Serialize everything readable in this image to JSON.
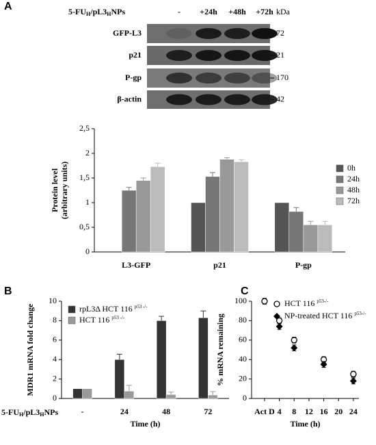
{
  "blot": {
    "treatment_label": [
      "5-FU",
      "H",
      "/pL3",
      "H",
      "NPs"
    ],
    "lanes": [
      "-",
      "+24h",
      "+48h",
      "+72h"
    ],
    "unit": "kDa",
    "rows": [
      {
        "name": "GFP-L3",
        "kda": "72"
      },
      {
        "name": "p21",
        "kda": "21"
      },
      {
        "name": "P-gp",
        "kda": "170"
      },
      {
        "name": "β-actin",
        "kda": "42"
      }
    ]
  },
  "chart_data": [
    {
      "type": "bar",
      "panel": "A",
      "y_label": [
        "Protein level",
        "(arbitrary units)"
      ],
      "categories": [
        "L3-GFP",
        "p21",
        "P-gp"
      ],
      "series": [
        {
          "name": "0h",
          "color": "#555555",
          "values": [
            null,
            1,
            1
          ],
          "errors": [
            null,
            0,
            0
          ]
        },
        {
          "name": "24h",
          "color": "#777777",
          "values": [
            1.25,
            1.53,
            0.82
          ],
          "errors": [
            0.06,
            0.08,
            0.08
          ]
        },
        {
          "name": "48h",
          "color": "#999999",
          "values": [
            1.45,
            1.88,
            0.55
          ],
          "errors": [
            0.05,
            0.03,
            0.07
          ]
        },
        {
          "name": "72h",
          "color": "#bbbbbb",
          "values": [
            1.73,
            1.83,
            0.55
          ],
          "errors": [
            0.07,
            0.04,
            0.07
          ]
        }
      ],
      "ylim": [
        0,
        2.5
      ],
      "yticks": [
        0,
        {
          "value": 0.5,
          "label": "0,5"
        },
        1,
        {
          "value": 1.5,
          "label": "1,5"
        },
        2,
        {
          "value": 2.5,
          "label": "2,5"
        }
      ],
      "legend": "right"
    },
    {
      "type": "bar",
      "panel": "B",
      "y_label": [
        "MDR1 mRNA fold change"
      ],
      "x_label": "Time (h)",
      "row_label": [
        "5-FU",
        "H",
        "/pL3",
        "H",
        "NPs"
      ],
      "categories": [
        "-",
        "24",
        "48",
        "72"
      ],
      "series": [
        {
          "name": "rpL3Δ HCT 116",
          "name_sup": "p53 -/-",
          "color": "#333333",
          "values": [
            1,
            4,
            8,
            8.3
          ],
          "errors": [
            0,
            0.55,
            0.45,
            0.7
          ]
        },
        {
          "name": "HCT 116",
          "name_sup": "p53 -/-",
          "color": "#999999",
          "values": [
            1,
            0.75,
            0.4,
            0.35
          ],
          "errors": [
            0,
            0.6,
            0.25,
            0.35
          ]
        }
      ],
      "ylim": [
        0,
        10
      ],
      "yticks": [
        0,
        2,
        4,
        6,
        8,
        10
      ],
      "legend": "upper left"
    },
    {
      "type": "scatter",
      "panel": "C",
      "y_label": [
        "% mRNA remaining"
      ],
      "x_label": "Time (h)",
      "series": [
        {
          "name": "HCT 116",
          "name_sup": "p53-/-",
          "marker": "open-circle",
          "color": "#000000",
          "x": [
            0,
            4,
            8,
            16,
            24
          ],
          "values": [
            100,
            80,
            60,
            40,
            25
          ],
          "errors": [
            3,
            3,
            3,
            3,
            3
          ]
        },
        {
          "name": "NP-treated HCT 116",
          "name_sup": "p53-/-",
          "marker": "diamond",
          "color": "#000000",
          "x": [
            4,
            8,
            16,
            24
          ],
          "values": [
            74,
            52,
            35,
            18
          ],
          "errors": [
            3,
            3,
            3,
            3
          ]
        }
      ],
      "xlim": [
        -3.5,
        25.5
      ],
      "xticks": [
        {
          "value": 0,
          "label": "Act D"
        },
        4,
        8,
        12,
        16,
        20,
        24
      ],
      "ylim": [
        0,
        100
      ],
      "yticks": [
        0,
        20,
        40,
        60,
        80,
        100
      ],
      "legend": "upper right"
    }
  ]
}
